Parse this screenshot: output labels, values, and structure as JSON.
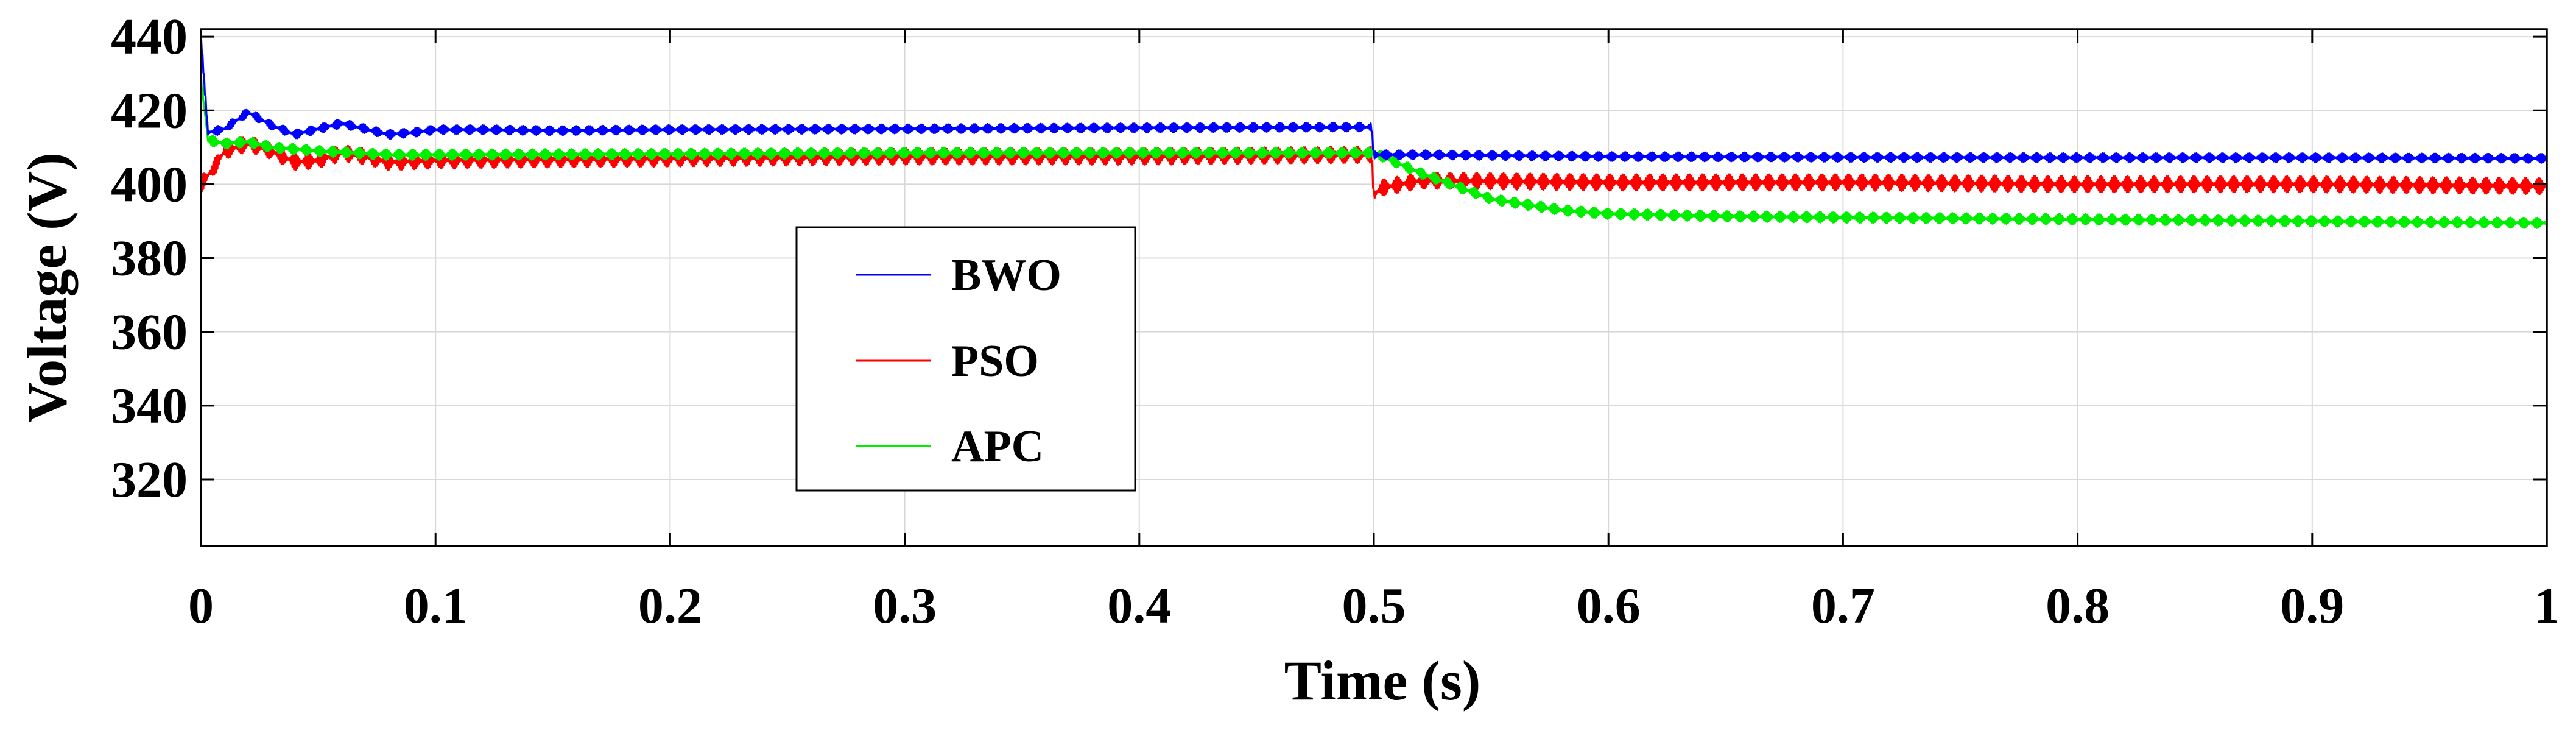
{
  "chart_data": {
    "type": "line",
    "title": "",
    "xlabel": "Time (s)",
    "ylabel": "Voltage (V)",
    "xlim": [
      0,
      1
    ],
    "ylim": [
      302,
      442
    ],
    "xticks": [
      0,
      0.1,
      0.2,
      0.3,
      0.4,
      0.5,
      0.6,
      0.7,
      0.8,
      0.9,
      1
    ],
    "xtick_labels": [
      "0",
      "0.1",
      "0.2",
      "0.3",
      "0.4",
      "0.5",
      "0.6",
      "0.7",
      "0.8",
      "0.9",
      "1"
    ],
    "yticks": [
      320,
      340,
      360,
      380,
      400,
      420,
      440
    ],
    "ytick_labels": [
      "320",
      "340",
      "360",
      "380",
      "400",
      "420",
      "440"
    ],
    "grid": true,
    "legend_position": "center-left",
    "series": [
      {
        "name": "BWO",
        "color": "#0000ff",
        "ripple": 1.2,
        "x": [
          0,
          0.003,
          0.01,
          0.02,
          0.03,
          0.04,
          0.05,
          0.06,
          0.07,
          0.08,
          0.09,
          0.1,
          0.12,
          0.15,
          0.2,
          0.3,
          0.4,
          0.499,
          0.5,
          0.52,
          0.6,
          0.7,
          0.8,
          0.9,
          1.0
        ],
        "values": [
          440,
          414,
          415,
          419.5,
          416,
          413.5,
          415,
          416.5,
          415,
          413.5,
          414,
          414.8,
          414.8,
          414.5,
          414.8,
          415,
          415.3,
          415.5,
          408,
          408,
          407.5,
          407.3,
          407.2,
          407.2,
          407
        ]
      },
      {
        "name": "PSO",
        "color": "#ff0000",
        "ripple": 2.2,
        "x": [
          0,
          0.005,
          0.01,
          0.02,
          0.03,
          0.04,
          0.05,
          0.06,
          0.07,
          0.08,
          0.1,
          0.2,
          0.3,
          0.4,
          0.499,
          0.5,
          0.503,
          0.52,
          0.6,
          0.7,
          0.8,
          0.9,
          1.0
        ],
        "values": [
          400,
          404,
          409,
          411,
          409,
          406,
          406.5,
          408.5,
          407.5,
          406,
          406.5,
          407,
          407.5,
          407.5,
          408,
          397,
          399,
          401,
          400.5,
          400.5,
          400,
          400,
          399.5
        ]
      },
      {
        "name": "APC",
        "color": "#00ee00",
        "ripple": 1.4,
        "x": [
          0,
          0.003,
          0.01,
          0.02,
          0.03,
          0.05,
          0.08,
          0.1,
          0.2,
          0.3,
          0.4,
          0.5,
          0.52,
          0.55,
          0.58,
          0.6,
          0.65,
          0.7,
          0.8,
          0.9,
          1.0
        ],
        "values": [
          429,
          412,
          411,
          411.5,
          410,
          409,
          408,
          408,
          408.2,
          408.5,
          408.5,
          408.5,
          403,
          396,
          393,
          392,
          391.3,
          391,
          390.5,
          390,
          389.5
        ]
      }
    ]
  }
}
